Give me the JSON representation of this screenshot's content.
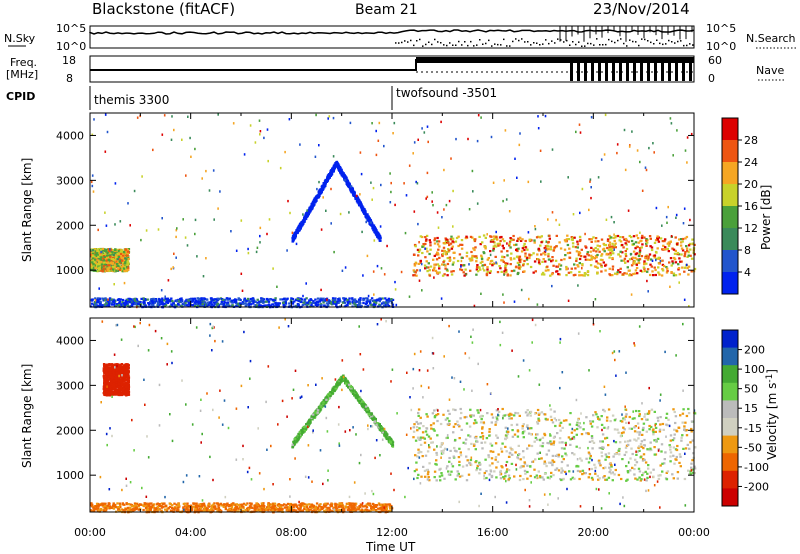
{
  "header": {
    "station": "Blackstone (fitACF)",
    "beam": "Beam 21",
    "date": "23/Nov/2014"
  },
  "noise_panel": {
    "left_label": "N.Sky",
    "left_ticks": [
      "10^5",
      "10^0"
    ],
    "right_label": "N.Search",
    "right_ticks": [
      "10^5",
      "10^0"
    ]
  },
  "freq_panel": {
    "left_label_1": "Freq.",
    "left_label_2": "[MHz]",
    "left_ticks": [
      "18",
      "8"
    ],
    "right_label": "Nave",
    "right_ticks": [
      "60",
      "0"
    ]
  },
  "cpid_panel": {
    "label": "CPID",
    "program_1": "themis 3300",
    "program_2": "twofsound -3501"
  },
  "colors": {
    "power": [
      "#0022ee",
      "#2255cc",
      "#3a8a5a",
      "#4aa03a",
      "#c8d22a",
      "#f5a623",
      "#ee5511",
      "#dd0000"
    ],
    "velocity": [
      "#0022cc",
      "#2266aa",
      "#44aa33",
      "#66cc44",
      "#bbbbbb",
      "#d0d0c0",
      "#ee9911",
      "#ee6600",
      "#dd2200",
      "#cc0000"
    ]
  },
  "chart_data": [
    {
      "type": "heatmap",
      "title": "",
      "xlabel": "Time UT",
      "ylabel": "Slant Range [km]",
      "x_ticks": [
        "00:00",
        "04:00",
        "08:00",
        "12:00",
        "16:00",
        "20:00",
        "00:00"
      ],
      "x_range_hours": [
        0,
        24
      ],
      "ylim": [
        180,
        4500
      ],
      "y_ticks": [
        1000,
        2000,
        3000,
        4000
      ],
      "colorbar": {
        "label": "Power [dB]",
        "ticks": [
          "28",
          "24",
          "20",
          "16",
          "12",
          "8",
          "4"
        ],
        "range": [
          0,
          30
        ]
      },
      "features": [
        {
          "name": "daytime F-region band",
          "time_range": [
            12.8,
            24
          ],
          "range_km": [
            900,
            1800
          ],
          "peak_db": 28
        },
        {
          "name": "ground scatter arc",
          "time_range": [
            8,
            11.5
          ],
          "range_km": [
            1700,
            3400
          ],
          "peak_db": 4
        },
        {
          "name": "near-range echoes",
          "time_range": [
            0,
            12
          ],
          "range_km": [
            200,
            400
          ],
          "peak_db": 10
        },
        {
          "name": "early band",
          "time_range": [
            0,
            1.5
          ],
          "range_km": [
            1000,
            1500
          ],
          "peak_db": 24
        }
      ]
    },
    {
      "type": "heatmap",
      "title": "",
      "xlabel": "Time UT",
      "ylabel": "Slant Range [km]",
      "x_ticks": [
        "00:00",
        "04:00",
        "08:00",
        "12:00",
        "16:00",
        "20:00",
        "00:00"
      ],
      "x_range_hours": [
        0,
        24
      ],
      "ylim": [
        180,
        4500
      ],
      "y_ticks": [
        1000,
        2000,
        3000,
        4000
      ],
      "colorbar": {
        "label": "Velocity [m s^-1]",
        "ticks": [
          "200",
          "100",
          "50",
          "15",
          "-15",
          "-50",
          "-100",
          "-200"
        ],
        "range": [
          -250,
          250
        ]
      },
      "features": [
        {
          "name": "low-velocity scatter",
          "time_range": [
            12.8,
            24
          ],
          "range_km": [
            900,
            2500
          ],
          "velocity": 0
        },
        {
          "name": "positive arc",
          "time_range": [
            8,
            12
          ],
          "range_km": [
            1700,
            3200
          ],
          "velocity": 40
        },
        {
          "name": "negative near-range",
          "time_range": [
            0,
            12
          ],
          "range_km": [
            200,
            400
          ],
          "velocity": -60
        },
        {
          "name": "early negative patch",
          "time_range": [
            0.5,
            1.5
          ],
          "range_km": [
            2800,
            3500
          ],
          "velocity": -150
        }
      ]
    }
  ]
}
